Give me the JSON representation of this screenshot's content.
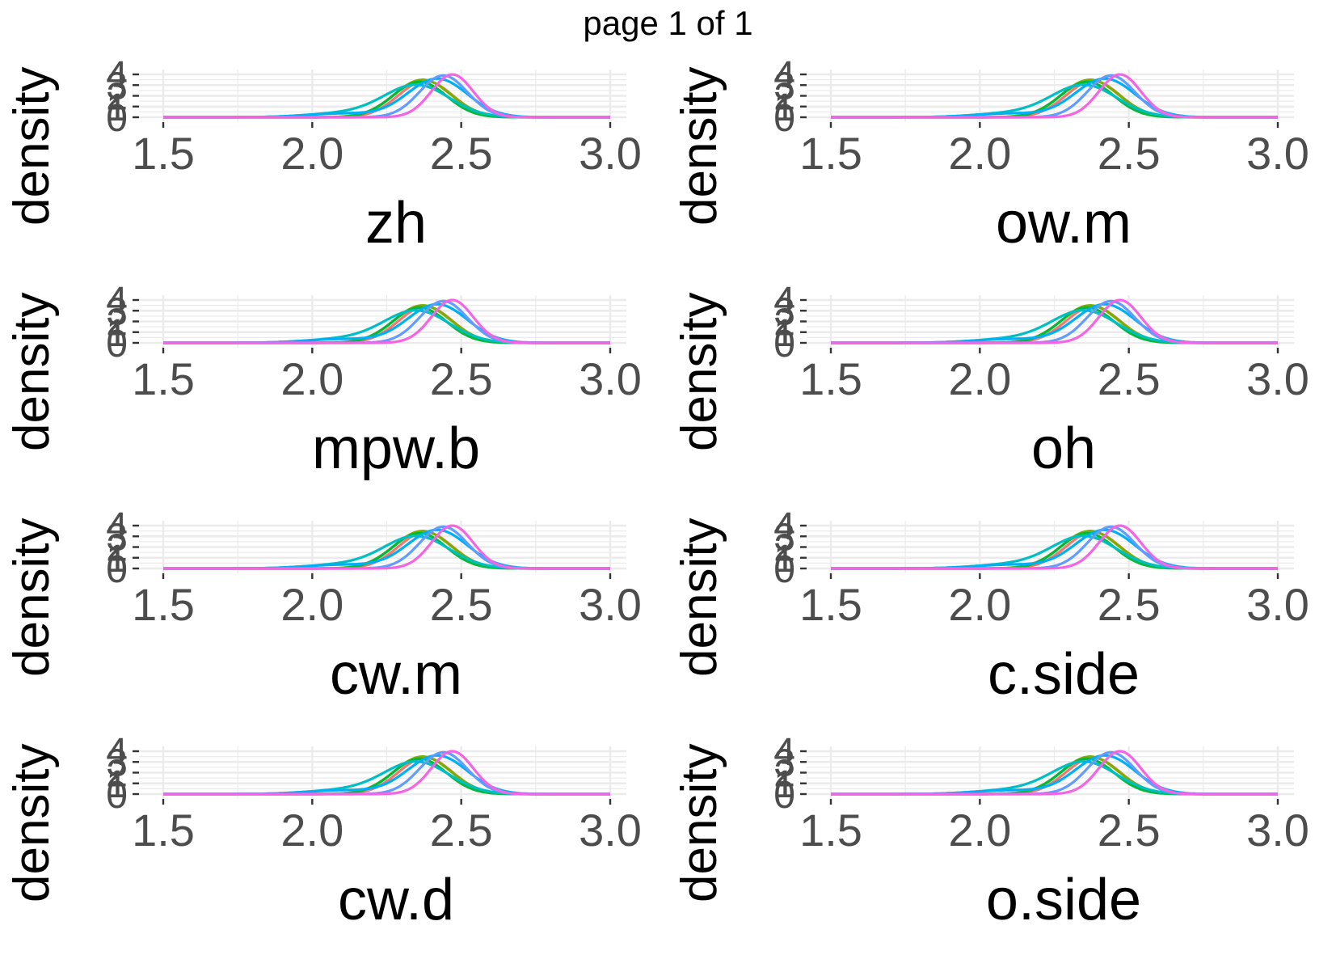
{
  "page_label": "page 1 of 1",
  "chart_data": [
    {
      "panel": "zh",
      "type": "line",
      "xlabel": "zh",
      "ylabel": "density",
      "xticks": [
        "1.5",
        "2.0",
        "2.5",
        "3.0"
      ],
      "yticks": [
        "0",
        "1",
        "2",
        "3",
        "4"
      ],
      "xlim": [
        1.5,
        3.0
      ],
      "ylim": [
        0,
        4
      ],
      "series": [
        {
          "color": "#F8766D",
          "peak": 2.38,
          "height": 3.4,
          "sd": 0.09
        },
        {
          "color": "#7CAE00",
          "peak": 2.37,
          "height": 3.5,
          "sd": 0.095
        },
        {
          "color": "#00BA38",
          "peak": 2.36,
          "height": 3.3,
          "sd": 0.09
        },
        {
          "color": "#00BFC4",
          "peak": 2.35,
          "height": 3.0,
          "sd": 0.11
        },
        {
          "color": "#00B0F6",
          "peak": 2.42,
          "height": 3.6,
          "sd": 0.1
        },
        {
          "color": "#619CFF",
          "peak": 2.44,
          "height": 3.9,
          "sd": 0.08
        },
        {
          "color": "#F564E3",
          "peak": 2.47,
          "height": 4.0,
          "sd": 0.07
        }
      ]
    },
    {
      "panel": "ow.m",
      "type": "line",
      "xlabel": "ow.m",
      "ylabel": "density",
      "xticks": [
        "1.5",
        "2.0",
        "2.5",
        "3.0"
      ],
      "yticks": [
        "0",
        "1",
        "2",
        "3",
        "4"
      ],
      "xlim": [
        1.5,
        3.0
      ],
      "ylim": [
        0,
        4
      ],
      "series": [
        {
          "color": "#F8766D",
          "peak": 2.38,
          "height": 3.4,
          "sd": 0.09
        },
        {
          "color": "#7CAE00",
          "peak": 2.37,
          "height": 3.5,
          "sd": 0.095
        },
        {
          "color": "#00BA38",
          "peak": 2.36,
          "height": 3.3,
          "sd": 0.09
        },
        {
          "color": "#00BFC4",
          "peak": 2.35,
          "height": 3.0,
          "sd": 0.11
        },
        {
          "color": "#00B0F6",
          "peak": 2.42,
          "height": 3.6,
          "sd": 0.1
        },
        {
          "color": "#619CFF",
          "peak": 2.44,
          "height": 3.9,
          "sd": 0.08
        },
        {
          "color": "#F564E3",
          "peak": 2.47,
          "height": 4.0,
          "sd": 0.07
        }
      ]
    },
    {
      "panel": "mpw.b",
      "type": "line",
      "xlabel": "mpw.b",
      "ylabel": "density",
      "xticks": [
        "1.5",
        "2.0",
        "2.5",
        "3.0"
      ],
      "yticks": [
        "0",
        "1",
        "2",
        "3",
        "4"
      ],
      "xlim": [
        1.5,
        3.0
      ],
      "ylim": [
        0,
        4
      ],
      "series": [
        {
          "color": "#F8766D",
          "peak": 2.38,
          "height": 3.4,
          "sd": 0.09
        },
        {
          "color": "#7CAE00",
          "peak": 2.37,
          "height": 3.5,
          "sd": 0.095
        },
        {
          "color": "#00BA38",
          "peak": 2.36,
          "height": 3.3,
          "sd": 0.09
        },
        {
          "color": "#00BFC4",
          "peak": 2.35,
          "height": 3.0,
          "sd": 0.11
        },
        {
          "color": "#00B0F6",
          "peak": 2.42,
          "height": 3.6,
          "sd": 0.1
        },
        {
          "color": "#619CFF",
          "peak": 2.44,
          "height": 3.9,
          "sd": 0.08
        },
        {
          "color": "#F564E3",
          "peak": 2.47,
          "height": 4.0,
          "sd": 0.07
        }
      ]
    },
    {
      "panel": "oh",
      "type": "line",
      "xlabel": "oh",
      "ylabel": "density",
      "xticks": [
        "1.5",
        "2.0",
        "2.5",
        "3.0"
      ],
      "yticks": [
        "0",
        "1",
        "2",
        "3",
        "4"
      ],
      "xlim": [
        1.5,
        3.0
      ],
      "ylim": [
        0,
        4
      ],
      "series": [
        {
          "color": "#F8766D",
          "peak": 2.38,
          "height": 3.4,
          "sd": 0.09
        },
        {
          "color": "#7CAE00",
          "peak": 2.37,
          "height": 3.5,
          "sd": 0.095
        },
        {
          "color": "#00BA38",
          "peak": 2.36,
          "height": 3.3,
          "sd": 0.09
        },
        {
          "color": "#00BFC4",
          "peak": 2.35,
          "height": 3.0,
          "sd": 0.11
        },
        {
          "color": "#00B0F6",
          "peak": 2.42,
          "height": 3.6,
          "sd": 0.1
        },
        {
          "color": "#619CFF",
          "peak": 2.44,
          "height": 3.9,
          "sd": 0.08
        },
        {
          "color": "#F564E3",
          "peak": 2.47,
          "height": 4.0,
          "sd": 0.07
        }
      ]
    },
    {
      "panel": "cw.m",
      "type": "line",
      "xlabel": "cw.m",
      "ylabel": "density",
      "xticks": [
        "1.5",
        "2.0",
        "2.5",
        "3.0"
      ],
      "yticks": [
        "0",
        "1",
        "2",
        "3",
        "4"
      ],
      "xlim": [
        1.5,
        3.0
      ],
      "ylim": [
        0,
        4
      ],
      "series": [
        {
          "color": "#F8766D",
          "peak": 2.38,
          "height": 3.4,
          "sd": 0.09
        },
        {
          "color": "#7CAE00",
          "peak": 2.37,
          "height": 3.5,
          "sd": 0.095
        },
        {
          "color": "#00BA38",
          "peak": 2.36,
          "height": 3.3,
          "sd": 0.09
        },
        {
          "color": "#00BFC4",
          "peak": 2.35,
          "height": 3.0,
          "sd": 0.11
        },
        {
          "color": "#00B0F6",
          "peak": 2.42,
          "height": 3.6,
          "sd": 0.1
        },
        {
          "color": "#619CFF",
          "peak": 2.44,
          "height": 3.9,
          "sd": 0.08
        },
        {
          "color": "#F564E3",
          "peak": 2.47,
          "height": 4.0,
          "sd": 0.07
        }
      ]
    },
    {
      "panel": "c.side",
      "type": "line",
      "xlabel": "c.side",
      "ylabel": "density",
      "xticks": [
        "1.5",
        "2.0",
        "2.5",
        "3.0"
      ],
      "yticks": [
        "0",
        "1",
        "2",
        "3",
        "4"
      ],
      "xlim": [
        1.5,
        3.0
      ],
      "ylim": [
        0,
        4
      ],
      "series": [
        {
          "color": "#F8766D",
          "peak": 2.38,
          "height": 3.4,
          "sd": 0.09
        },
        {
          "color": "#7CAE00",
          "peak": 2.37,
          "height": 3.5,
          "sd": 0.095
        },
        {
          "color": "#00BA38",
          "peak": 2.36,
          "height": 3.3,
          "sd": 0.09
        },
        {
          "color": "#00BFC4",
          "peak": 2.35,
          "height": 3.0,
          "sd": 0.11
        },
        {
          "color": "#00B0F6",
          "peak": 2.42,
          "height": 3.6,
          "sd": 0.1
        },
        {
          "color": "#619CFF",
          "peak": 2.44,
          "height": 3.9,
          "sd": 0.08
        },
        {
          "color": "#F564E3",
          "peak": 2.47,
          "height": 4.0,
          "sd": 0.07
        }
      ]
    },
    {
      "panel": "cw.d",
      "type": "line",
      "xlabel": "cw.d",
      "ylabel": "density",
      "xticks": [
        "1.5",
        "2.0",
        "2.5",
        "3.0"
      ],
      "yticks": [
        "0",
        "1",
        "2",
        "3",
        "4"
      ],
      "xlim": [
        1.5,
        3.0
      ],
      "ylim": [
        0,
        4
      ],
      "series": [
        {
          "color": "#F8766D",
          "peak": 2.38,
          "height": 3.4,
          "sd": 0.09
        },
        {
          "color": "#7CAE00",
          "peak": 2.37,
          "height": 3.5,
          "sd": 0.095
        },
        {
          "color": "#00BA38",
          "peak": 2.36,
          "height": 3.3,
          "sd": 0.09
        },
        {
          "color": "#00BFC4",
          "peak": 2.35,
          "height": 3.0,
          "sd": 0.11
        },
        {
          "color": "#00B0F6",
          "peak": 2.42,
          "height": 3.6,
          "sd": 0.1
        },
        {
          "color": "#619CFF",
          "peak": 2.44,
          "height": 3.9,
          "sd": 0.08
        },
        {
          "color": "#F564E3",
          "peak": 2.47,
          "height": 4.0,
          "sd": 0.07
        }
      ]
    },
    {
      "panel": "o.side",
      "type": "line",
      "xlabel": "o.side",
      "ylabel": "density",
      "xticks": [
        "1.5",
        "2.0",
        "2.5",
        "3.0"
      ],
      "yticks": [
        "0",
        "1",
        "2",
        "3",
        "4"
      ],
      "xlim": [
        1.5,
        3.0
      ],
      "ylim": [
        0,
        4
      ],
      "series": [
        {
          "color": "#F8766D",
          "peak": 2.38,
          "height": 3.4,
          "sd": 0.09
        },
        {
          "color": "#7CAE00",
          "peak": 2.37,
          "height": 3.5,
          "sd": 0.095
        },
        {
          "color": "#00BA38",
          "peak": 2.36,
          "height": 3.3,
          "sd": 0.09
        },
        {
          "color": "#00BFC4",
          "peak": 2.35,
          "height": 3.0,
          "sd": 0.11
        },
        {
          "color": "#00B0F6",
          "peak": 2.42,
          "height": 3.6,
          "sd": 0.1
        },
        {
          "color": "#619CFF",
          "peak": 2.44,
          "height": 3.9,
          "sd": 0.08
        },
        {
          "color": "#F564E3",
          "peak": 2.47,
          "height": 4.0,
          "sd": 0.07
        }
      ]
    }
  ]
}
